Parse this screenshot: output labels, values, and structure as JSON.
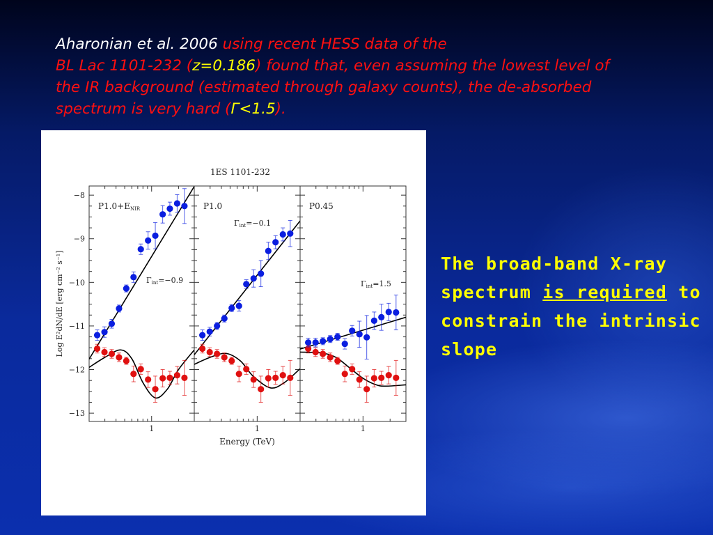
{
  "slide": {
    "intro": {
      "author": "Aharonian et al. 2006",
      "part1": " using recent HESS data of the",
      "part2": "BL Lac 1101-232 (",
      "redshift": "z=0.186",
      "part3": ") found that, even assuming the lowest level of the IR background (estimated through galaxy counts), the de-absorbed spectrum is very hard (",
      "gamma": "Γ<1.5",
      "part4": ")."
    },
    "side_text": {
      "before": "The broad-band X-ray spectrum ",
      "underlined": "is required",
      "after": " to constrain the intrinsic slope"
    },
    "colors": {
      "intro_text": "#ff1010",
      "author": "#ffffff",
      "highlight": "#ffff00",
      "side_text": "#ffff00",
      "background": "#0a2a9c"
    }
  },
  "chart_data": {
    "type": "scatter",
    "title": "1ES 1101-232",
    "xlabel": "Energy (TeV)",
    "ylabel": "Log E²dN/dE [erg cm⁻² s⁻¹]",
    "xscale": "log",
    "xlim": [
      0.2,
      3
    ],
    "ylim": [
      -13.19,
      -7.79
    ],
    "yticks": [
      -8,
      -9,
      -10,
      -11,
      -12,
      -13
    ],
    "ytick_labels": [
      "−8",
      "−9",
      "−10",
      "−11",
      "−12",
      "−13"
    ],
    "xticks": [
      1
    ],
    "xtick_labels": [
      "1"
    ],
    "colors": {
      "deabsorbed": "#0a1ee0",
      "observed": "#e01010",
      "fit": "#000000"
    },
    "energy": [
      0.246,
      0.297,
      0.358,
      0.432,
      0.521,
      0.628,
      0.757,
      0.913,
      1.1,
      1.33,
      1.6,
      1.93,
      2.33
    ],
    "panels": [
      {
        "label": "P1.0+E",
        "label_sub": "NIR",
        "gamma_label": "Γ",
        "gamma_sub": "int",
        "gamma_value": "=−0.9",
        "deabsorbed": [
          -11.21,
          -11.14,
          -10.95,
          -10.6,
          -10.14,
          -9.88,
          -9.24,
          -9.04,
          -8.93,
          -8.44,
          -8.31,
          -8.19,
          -8.25
        ],
        "deabsorbed_err": [
          0.12,
          0.12,
          0.1,
          0.08,
          0.08,
          0.12,
          0.12,
          0.2,
          0.3,
          0.2,
          0.15,
          0.2,
          0.4
        ],
        "observed": [
          -11.52,
          -11.6,
          -11.64,
          -11.72,
          -11.8,
          -12.1,
          -11.99,
          -12.23,
          -12.45,
          -12.2,
          -12.19,
          -12.13,
          -12.19
        ],
        "observed_err": [
          0.1,
          0.1,
          0.1,
          0.1,
          0.08,
          0.18,
          0.12,
          0.18,
          0.3,
          0.2,
          0.15,
          0.2,
          0.4
        ],
        "fit_line": [
          [
            0.2,
            -11.76
          ],
          [
            3.0,
            -7.8
          ]
        ],
        "model_curve": [
          [
            0.2,
            -11.95
          ],
          [
            0.3,
            -11.72
          ],
          [
            0.45,
            -11.55
          ],
          [
            0.6,
            -11.75
          ],
          [
            0.8,
            -12.3
          ],
          [
            1.1,
            -12.65
          ],
          [
            1.5,
            -12.45
          ],
          [
            2.0,
            -12.0
          ],
          [
            3.0,
            -11.55
          ]
        ]
      },
      {
        "label": "P1.0",
        "label_sub": "",
        "gamma_label": "Γ",
        "gamma_sub": "int",
        "gamma_value": "=−0.1",
        "deabsorbed": [
          -11.21,
          -11.13,
          -11.0,
          -10.83,
          -10.59,
          -10.54,
          -10.04,
          -9.91,
          -9.8,
          -9.28,
          -9.08,
          -8.9,
          -8.88
        ],
        "deabsorbed_err": [
          0.12,
          0.1,
          0.08,
          0.08,
          0.08,
          0.12,
          0.1,
          0.2,
          0.3,
          0.2,
          0.15,
          0.15,
          0.3
        ],
        "observed": [
          -11.52,
          -11.6,
          -11.64,
          -11.72,
          -11.8,
          -12.1,
          -11.99,
          -12.23,
          -12.45,
          -12.2,
          -12.19,
          -12.13,
          -12.19
        ],
        "observed_err": [
          0.1,
          0.1,
          0.1,
          0.1,
          0.08,
          0.18,
          0.12,
          0.18,
          0.3,
          0.2,
          0.15,
          0.2,
          0.4
        ],
        "fit_line": [
          [
            0.2,
            -11.66
          ],
          [
            3.0,
            -8.59
          ]
        ],
        "model_curve": [
          [
            0.2,
            -11.88
          ],
          [
            0.3,
            -11.72
          ],
          [
            0.45,
            -11.63
          ],
          [
            0.65,
            -11.8
          ],
          [
            0.9,
            -12.15
          ],
          [
            1.4,
            -12.42
          ],
          [
            2.0,
            -12.3
          ],
          [
            3.0,
            -11.98
          ]
        ]
      },
      {
        "label": "P0.45",
        "label_sub": "",
        "gamma_label": "Γ",
        "gamma_sub": "int",
        "gamma_value": "=1.5",
        "deabsorbed": [
          -11.38,
          -11.38,
          -11.35,
          -11.3,
          -11.25,
          -11.41,
          -11.11,
          -11.19,
          -11.26,
          -10.88,
          -10.8,
          -10.68,
          -10.69
        ],
        "deabsorbed_err": [
          0.1,
          0.1,
          0.08,
          0.08,
          0.08,
          0.12,
          0.12,
          0.3,
          0.5,
          0.2,
          0.3,
          0.2,
          0.4
        ],
        "observed": [
          -11.52,
          -11.6,
          -11.64,
          -11.72,
          -11.8,
          -12.1,
          -11.99,
          -12.23,
          -12.45,
          -12.2,
          -12.19,
          -12.13,
          -12.19
        ],
        "observed_err": [
          0.1,
          0.1,
          0.1,
          0.1,
          0.08,
          0.18,
          0.12,
          0.18,
          0.3,
          0.2,
          0.15,
          0.2,
          0.4
        ],
        "fit_line": [
          [
            0.2,
            -11.53
          ],
          [
            3.0,
            -10.8
          ]
        ],
        "model_curve": [
          [
            0.2,
            -11.6
          ],
          [
            0.35,
            -11.62
          ],
          [
            0.5,
            -11.72
          ],
          [
            0.7,
            -11.95
          ],
          [
            1.0,
            -12.2
          ],
          [
            1.4,
            -12.35
          ],
          [
            1.8,
            -12.38
          ],
          [
            3.0,
            -12.35
          ]
        ]
      }
    ]
  }
}
